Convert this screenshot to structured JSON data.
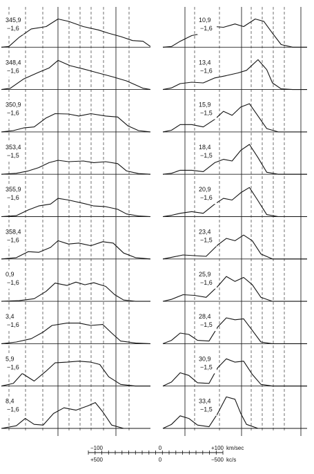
{
  "chart_data": {
    "type": "line",
    "panels": [
      {
        "name": "left-column",
        "profiles": [
          {
            "longitude": "345,9",
            "latitude": "−1,6"
          },
          {
            "longitude": "348,4",
            "latitude": "−1,6"
          },
          {
            "longitude": "350,9",
            "latitude": "−1,6"
          },
          {
            "longitude": "353,4",
            "latitude": "−1,5"
          },
          {
            "longitude": "355,9",
            "latitude": "−1,6"
          },
          {
            "longitude": "358,4",
            "latitude": "−1,6"
          },
          {
            "longitude": "0,9",
            "latitude": "−1,6"
          },
          {
            "longitude": "3,4",
            "latitude": "−1,6"
          },
          {
            "longitude": "5,9",
            "latitude": "−1,6"
          },
          {
            "longitude": "8,4",
            "latitude": "−1,6"
          }
        ]
      },
      {
        "name": "right-column",
        "profiles": [
          {
            "longitude": "10,9",
            "latitude": "−1,6"
          },
          {
            "longitude": "13,4",
            "latitude": "−1,6"
          },
          {
            "longitude": "15,9",
            "latitude": "−1,5"
          },
          {
            "longitude": "18,4",
            "latitude": "−1,5"
          },
          {
            "longitude": "20,9",
            "latitude": "−1,6"
          },
          {
            "longitude": "23,4",
            "latitude": "−1,5"
          },
          {
            "longitude": "25,9",
            "latitude": "−1,6"
          },
          {
            "longitude": "28,4",
            "latitude": "−1,5"
          },
          {
            "longitude": "30,9",
            "latitude": "−1,5"
          },
          {
            "longitude": "33,4",
            "latitude": "−1,5"
          }
        ]
      }
    ],
    "velocity_axis": {
      "unit": "km/sec",
      "ticks": [
        "−100",
        "0",
        "+100"
      ],
      "range": [
        -150,
        150
      ]
    },
    "frequency_axis": {
      "unit": "kc/s",
      "ticks": [
        "+500",
        "0",
        "−500"
      ]
    },
    "grid": true
  }
}
